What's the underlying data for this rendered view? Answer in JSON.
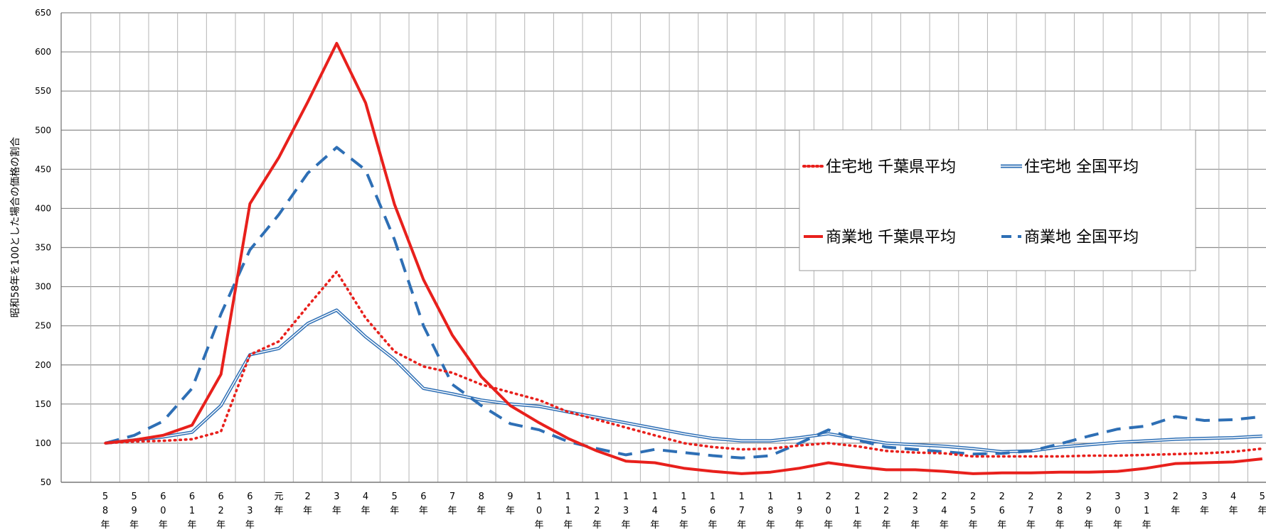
{
  "chart_data": {
    "type": "line",
    "ylabel": "昭和58年を100とした場合の価格の割合",
    "ylim": [
      50,
      650
    ],
    "yticks": [
      50,
      100,
      150,
      200,
      250,
      300,
      350,
      400,
      450,
      500,
      550,
      600,
      650
    ],
    "grid": true,
    "legend_position": "upper-right",
    "categories": [
      [
        "5",
        "8",
        "年"
      ],
      [
        "5",
        "9",
        "年"
      ],
      [
        "6",
        "0",
        "年"
      ],
      [
        "6",
        "1",
        "年"
      ],
      [
        "6",
        "2",
        "年"
      ],
      [
        "6",
        "3",
        "年"
      ],
      [
        "元",
        "年"
      ],
      [
        "2",
        "年"
      ],
      [
        "3",
        "年"
      ],
      [
        "4",
        "年"
      ],
      [
        "5",
        "年"
      ],
      [
        "6",
        "年"
      ],
      [
        "7",
        "年"
      ],
      [
        "8",
        "年"
      ],
      [
        "9",
        "年"
      ],
      [
        "1",
        "0",
        "年"
      ],
      [
        "1",
        "1",
        "年"
      ],
      [
        "1",
        "2",
        "年"
      ],
      [
        "1",
        "3",
        "年"
      ],
      [
        "1",
        "4",
        "年"
      ],
      [
        "1",
        "5",
        "年"
      ],
      [
        "1",
        "6",
        "年"
      ],
      [
        "1",
        "7",
        "年"
      ],
      [
        "1",
        "8",
        "年"
      ],
      [
        "1",
        "9",
        "年"
      ],
      [
        "2",
        "0",
        "年"
      ],
      [
        "2",
        "1",
        "年"
      ],
      [
        "2",
        "2",
        "年"
      ],
      [
        "2",
        "3",
        "年"
      ],
      [
        "2",
        "4",
        "年"
      ],
      [
        "2",
        "5",
        "年"
      ],
      [
        "2",
        "6",
        "年"
      ],
      [
        "2",
        "7",
        "年"
      ],
      [
        "2",
        "8",
        "年"
      ],
      [
        "2",
        "9",
        "年"
      ],
      [
        "3",
        "0",
        "年"
      ],
      [
        "3",
        "1",
        "年"
      ],
      [
        "2",
        "年"
      ],
      [
        "3",
        "年"
      ],
      [
        "4",
        "年"
      ],
      [
        "5",
        "年"
      ]
    ],
    "series": [
      {
        "name": "住宅地 千葉県平均",
        "style": "dotted",
        "color": "#e8201c",
        "values": [
          100,
          102,
          103,
          105,
          115,
          213,
          230,
          275,
          319,
          260,
          217,
          198,
          190,
          175,
          165,
          155,
          140,
          130,
          120,
          110,
          100,
          95,
          92,
          93,
          97,
          100,
          96,
          90,
          88,
          87,
          83,
          83,
          83,
          83,
          84,
          84,
          85,
          86,
          87,
          89,
          93
        ]
      },
      {
        "name": "住宅地 全国平均",
        "style": "double",
        "color": "#2e6fb5",
        "values": [
          100,
          104,
          108,
          114,
          148,
          213,
          221,
          253,
          270,
          236,
          207,
          170,
          163,
          155,
          150,
          147,
          140,
          133,
          126,
          119,
          112,
          106,
          103,
          103,
          107,
          112,
          106,
          100,
          98,
          96,
          93,
          89,
          90,
          95,
          98,
          101,
          103,
          105,
          106,
          107,
          109
        ]
      },
      {
        "name": "商業地 千葉県平均",
        "style": "solid",
        "color": "#e8201c",
        "values": [
          100,
          104,
          110,
          123,
          188,
          406,
          465,
          536,
          611,
          535,
          405,
          309,
          238,
          185,
          148,
          126,
          106,
          90,
          77,
          75,
          68,
          64,
          61,
          63,
          68,
          75,
          70,
          66,
          66,
          64,
          61,
          62,
          62,
          63,
          63,
          64,
          68,
          74,
          75,
          76,
          80
        ]
      },
      {
        "name": "商業地 全国平均",
        "style": "dashed",
        "color": "#2e6fb5",
        "values": [
          100,
          110,
          128,
          170,
          265,
          347,
          392,
          445,
          478,
          449,
          360,
          250,
          175,
          148,
          125,
          117,
          102,
          93,
          85,
          92,
          88,
          84,
          81,
          84,
          100,
          117,
          104,
          95,
          92,
          89,
          86,
          87,
          90,
          99,
          109,
          118,
          122,
          134,
          129,
          130,
          134
        ]
      }
    ]
  }
}
